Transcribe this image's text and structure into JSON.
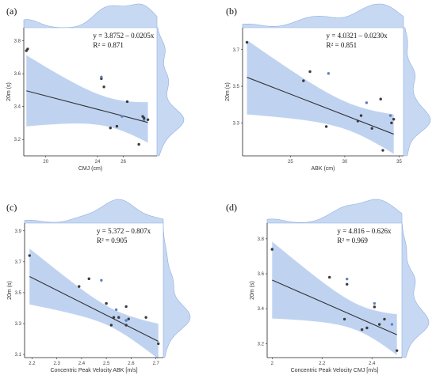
{
  "panel_labels": [
    "(a)",
    "(b)",
    "(c)",
    "(d)"
  ],
  "colors": {
    "band": "#a9c4ec",
    "density": "#c7d8f3",
    "density_stroke": "#8fb0e0",
    "line": "#333333",
    "point": "#3b3b3b",
    "point_light": "#5f7fbf"
  },
  "chart_data": [
    {
      "type": "scatter",
      "xlabel": "CMJ (cm)",
      "ylabel": "20m (s)",
      "equation": "y = 3.8752 – 0.0205x",
      "r2": "R² = 0.871",
      "xlim": [
        18.3,
        28.6
      ],
      "ylim": [
        3.1,
        3.88
      ],
      "xticks": [
        20,
        24,
        26
      ],
      "yticks": [
        3.2,
        3.4,
        3.6,
        3.8
      ],
      "x": [
        18.5,
        18.6,
        24.3,
        24.3,
        24.5,
        25.0,
        25.5,
        25.9,
        26.3,
        27.2,
        27.5,
        27.6,
        27.6,
        27.9
      ],
      "y": [
        3.74,
        3.75,
        3.57,
        3.58,
        3.52,
        3.27,
        3.28,
        3.34,
        3.43,
        3.17,
        3.34,
        3.32,
        3.33,
        3.32
      ],
      "fit": {
        "intercept": 3.8752,
        "slope": -0.0205
      },
      "grid": false
    },
    {
      "type": "scatter",
      "xlabel": "ABK (cm)",
      "ylabel": "20m (s)",
      "equation": "y = 4.0321 – 0.0230x",
      "r2": "R² = 0.851",
      "xlim": [
        20.6,
        35.4
      ],
      "ylim": [
        3.12,
        3.82
      ],
      "xticks": [
        25,
        30,
        35
      ],
      "yticks": [
        3.3,
        3.5,
        3.7
      ],
      "x": [
        21.0,
        26.8,
        26.2,
        28.5,
        28.3,
        31.2,
        31.5,
        32.0,
        32.5,
        33.3,
        33.5,
        34.2,
        34.3,
        34.5
      ],
      "y": [
        3.74,
        3.58,
        3.53,
        3.57,
        3.28,
        3.31,
        3.34,
        3.41,
        3.27,
        3.43,
        3.15,
        3.34,
        3.3,
        3.32
      ],
      "fit": {
        "intercept": 4.0321,
        "slope": -0.023
      },
      "grid": false
    },
    {
      "type": "scatter",
      "xlabel": "Concentric Peak Velocity ABK [m/s]",
      "ylabel": "20m (s)",
      "equation": "y = 5.372 – 0.807x",
      "r2": "R² = 0.905",
      "xlim": [
        2.17,
        2.73
      ],
      "ylim": [
        3.08,
        3.95
      ],
      "xticks": [
        2.2,
        2.3,
        2.4,
        2.5,
        2.6,
        2.7
      ],
      "yticks": [
        3.1,
        3.3,
        3.5,
        3.7,
        3.9
      ],
      "x": [
        2.19,
        2.39,
        2.43,
        2.48,
        2.5,
        2.52,
        2.53,
        2.54,
        2.55,
        2.58,
        2.58,
        2.58,
        2.59,
        2.66,
        2.71
      ],
      "y": [
        3.74,
        3.54,
        3.59,
        3.58,
        3.43,
        3.29,
        3.34,
        3.39,
        3.34,
        3.41,
        3.29,
        3.32,
        3.33,
        3.34,
        3.17
      ],
      "fit": {
        "intercept": 5.372,
        "slope": -0.807
      },
      "grid": false
    },
    {
      "type": "scatter",
      "xlabel": "Concentric Peak Velocity CMJ [m/s]",
      "ylabel": "20m (s)",
      "equation": "y = 4.816 – 0.626x",
      "r2": "R² = 0.969",
      "xlim": [
        1.98,
        2.52
      ],
      "ylim": [
        3.12,
        3.89
      ],
      "xticks": [
        2.0,
        2.2,
        2.4
      ],
      "yticks": [
        3.2,
        3.4,
        3.6,
        3.8
      ],
      "x": [
        2.0,
        2.23,
        2.29,
        2.3,
        2.3,
        2.36,
        2.38,
        2.41,
        2.41,
        2.43,
        2.45,
        2.48,
        2.5
      ],
      "y": [
        3.74,
        3.58,
        3.34,
        3.57,
        3.54,
        3.28,
        3.29,
        3.43,
        3.41,
        3.31,
        3.34,
        3.31,
        3.16
      ],
      "fit": {
        "intercept": 4.816,
        "slope": -0.626
      },
      "grid": false
    }
  ]
}
